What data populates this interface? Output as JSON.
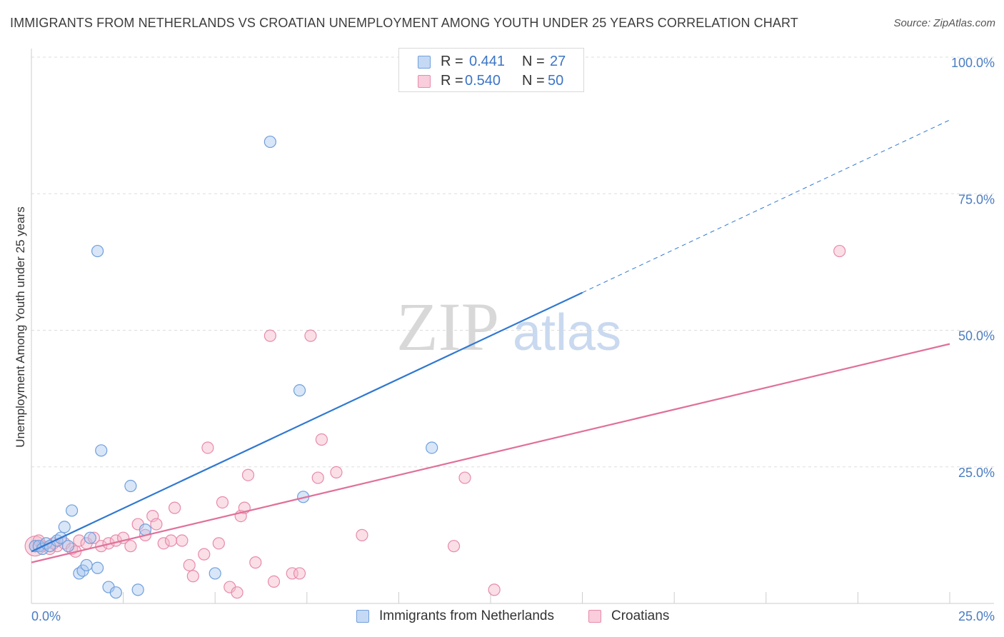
{
  "header": {
    "title": "IMMIGRANTS FROM NETHERLANDS VS CROATIAN UNEMPLOYMENT AMONG YOUTH UNDER 25 YEARS CORRELATION CHART",
    "source": "Source: ZipAtlas.com"
  },
  "watermark": {
    "zip": "ZIP",
    "atlas": "atlas"
  },
  "legend_top": {
    "rows": [
      {
        "r_label": "R =",
        "r_value": "0.441",
        "n_label": "N =",
        "n_value": "27"
      },
      {
        "r_label": "R =",
        "r_value": "0.540",
        "n_label": "N =",
        "n_value": "50"
      }
    ]
  },
  "legend_bottom": {
    "series_a": "Immigrants from Netherlands",
    "series_b": "Croatians"
  },
  "colors": {
    "blue_fill": "#a9c8f0",
    "blue_stroke": "#6f9fdc",
    "blue_line": "#2f78d0",
    "pink_fill": "#f5b7ca",
    "pink_stroke": "#e88aaa",
    "pink_line": "#e0709a",
    "grid": "#dddddd",
    "tick_text": "#4a7cc2"
  },
  "chart_data": {
    "type": "scatter",
    "title": "IMMIGRANTS FROM NETHERLANDS VS CROATIAN UNEMPLOYMENT AMONG YOUTH UNDER 25 YEARS CORRELATION CHART",
    "xlabel": "",
    "ylabel": "Unemployment Among Youth under 25 years",
    "xlim": [
      0,
      25
    ],
    "ylim": [
      0,
      100
    ],
    "x_tick_labels": [
      "0.0%",
      "25.0%"
    ],
    "y_tick_labels": [
      "25.0%",
      "50.0%",
      "75.0%",
      "100.0%"
    ],
    "y_ticks": [
      25,
      50,
      75,
      100
    ],
    "legend": "top-center",
    "series": [
      {
        "name": "Immigrants from Netherlands",
        "r": 0.441,
        "n": 27,
        "trend": {
          "x0": 0,
          "y0": 9.5,
          "x1": 25,
          "y1": 88.5,
          "solid_until_x": 15
        },
        "points": [
          [
            0.1,
            10.5
          ],
          [
            0.2,
            10.5
          ],
          [
            0.3,
            10.0
          ],
          [
            0.4,
            11.0
          ],
          [
            0.5,
            10.5
          ],
          [
            0.7,
            11.5
          ],
          [
            0.8,
            12.0
          ],
          [
            0.9,
            14.0
          ],
          [
            1.0,
            10.5
          ],
          [
            1.1,
            17.0
          ],
          [
            1.3,
            5.5
          ],
          [
            1.4,
            6.0
          ],
          [
            1.5,
            7.0
          ],
          [
            1.6,
            12.0
          ],
          [
            1.8,
            6.5
          ],
          [
            1.9,
            28.0
          ],
          [
            2.1,
            3.0
          ],
          [
            2.3,
            2.0
          ],
          [
            2.7,
            21.5
          ],
          [
            2.9,
            2.5
          ],
          [
            3.1,
            13.5
          ],
          [
            5.0,
            5.5
          ],
          [
            6.5,
            84.5
          ],
          [
            7.3,
            39.0
          ],
          [
            7.4,
            19.5
          ],
          [
            10.9,
            28.5
          ],
          [
            1.8,
            64.5
          ]
        ]
      },
      {
        "name": "Croatians",
        "r": 0.54,
        "n": 50,
        "trend": {
          "x0": 0,
          "y0": 7.5,
          "x1": 25,
          "y1": 47.5
        },
        "points": [
          [
            0.1,
            10.5
          ],
          [
            0.3,
            10.5
          ],
          [
            0.5,
            10.0
          ],
          [
            0.7,
            10.5
          ],
          [
            0.9,
            11.0
          ],
          [
            1.1,
            10.0
          ],
          [
            1.3,
            11.5
          ],
          [
            1.5,
            11.0
          ],
          [
            1.7,
            12.0
          ],
          [
            1.9,
            10.5
          ],
          [
            2.1,
            11.0
          ],
          [
            2.3,
            11.5
          ],
          [
            2.5,
            12.0
          ],
          [
            2.7,
            10.5
          ],
          [
            2.9,
            14.5
          ],
          [
            3.1,
            12.5
          ],
          [
            3.3,
            16.0
          ],
          [
            3.4,
            14.5
          ],
          [
            3.6,
            11.0
          ],
          [
            3.8,
            11.5
          ],
          [
            3.9,
            17.5
          ],
          [
            4.1,
            11.5
          ],
          [
            4.3,
            7.0
          ],
          [
            4.4,
            5.0
          ],
          [
            4.7,
            9.0
          ],
          [
            4.8,
            28.5
          ],
          [
            5.1,
            11.0
          ],
          [
            5.2,
            18.5
          ],
          [
            5.4,
            3.0
          ],
          [
            5.6,
            2.0
          ],
          [
            5.7,
            16.0
          ],
          [
            5.8,
            17.5
          ],
          [
            5.9,
            23.5
          ],
          [
            6.1,
            7.5
          ],
          [
            6.5,
            49.0
          ],
          [
            6.6,
            4.0
          ],
          [
            7.1,
            5.5
          ],
          [
            7.3,
            5.5
          ],
          [
            7.6,
            49.0
          ],
          [
            7.8,
            23.0
          ],
          [
            7.9,
            30.0
          ],
          [
            8.3,
            24.0
          ],
          [
            9.0,
            12.5
          ],
          [
            11.5,
            10.5
          ],
          [
            11.8,
            23.0
          ],
          [
            12.6,
            2.5
          ],
          [
            22.0,
            64.5
          ],
          [
            0.2,
            11.5
          ],
          [
            0.6,
            11.0
          ],
          [
            1.2,
            9.5
          ]
        ]
      }
    ]
  }
}
